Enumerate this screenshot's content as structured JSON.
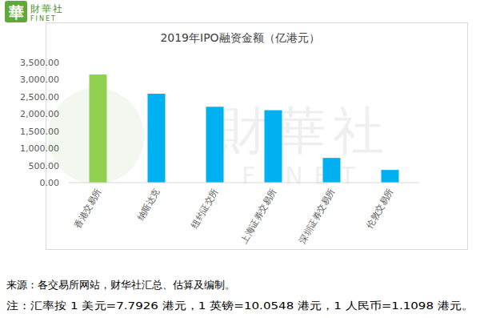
{
  "chart_data": {
    "type": "bar",
    "title": "2019年IPO融资金额（亿港元）",
    "categories": [
      "香港交易所",
      "纳斯达克",
      "纽约证交所",
      "上海证券交易所",
      "深圳证券交易所",
      "伦敦交易所"
    ],
    "values": [
      3150,
      2590,
      2210,
      2110,
      720,
      370
    ],
    "colors": [
      "#92d050",
      "#00b0f0",
      "#00b0f0",
      "#00b0f0",
      "#00b0f0",
      "#00b0f0"
    ],
    "ylim": [
      0,
      3500
    ],
    "yticks": [
      {
        "value": 0,
        "label": "0.00"
      },
      {
        "value": 500,
        "label": "500.00"
      },
      {
        "value": 1000,
        "label": "1,000.00"
      },
      {
        "value": 1500,
        "label": "1,500.00"
      },
      {
        "value": 2000,
        "label": "2,000.00"
      },
      {
        "value": 2500,
        "label": "2,500.00"
      },
      {
        "value": 3000,
        "label": "3,000.00"
      },
      {
        "value": 3500,
        "label": "3,500.00"
      }
    ],
    "grid": false,
    "data_labels": false,
    "source": "来源：各交易所网站，财华社汇总、估算及编制。",
    "note": "注：汇率按 1 美元=7.7926 港元，1 英镑=10.0548 港元，1 人民币=1.1098 港元。"
  },
  "logo": {
    "mark": "華",
    "name": "財華社",
    "name_en": "FINET"
  }
}
